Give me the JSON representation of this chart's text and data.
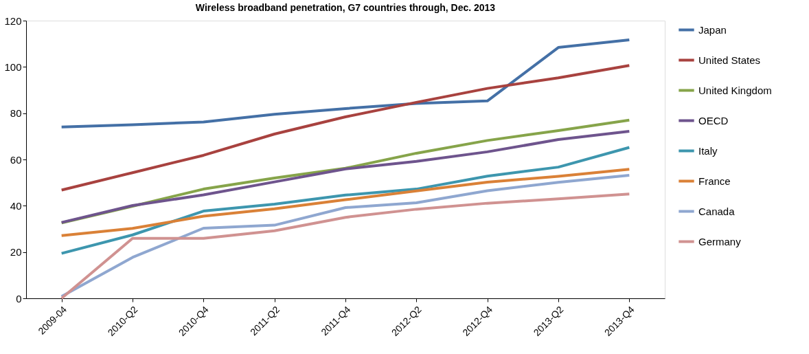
{
  "chart_data": {
    "type": "line",
    "title": "Wireless broadband penetration, G7 countries through,  Dec.  2013",
    "categories": [
      "2009-04",
      "2010-Q2",
      "2010-Q4",
      "2011-Q2",
      "2011-Q4",
      "2012-Q2",
      "2012-Q4",
      "2013-Q2",
      "2013-Q4"
    ],
    "ylim": [
      0,
      120
    ],
    "yticks": [
      0,
      20,
      40,
      60,
      80,
      100,
      120
    ],
    "grid": false,
    "legend": "right",
    "marker": "none",
    "line_style": "solid",
    "series": [
      {
        "name": "Japan",
        "color": "#4470a6",
        "values": [
          74.0,
          75.0,
          76.2,
          79.5,
          82.0,
          84.2,
          85.3,
          108.4,
          111.7
        ]
      },
      {
        "name": "United States",
        "color": "#a8423f",
        "values": [
          46.8,
          54.3,
          61.8,
          71.0,
          78.4,
          84.7,
          90.7,
          95.3,
          100.6
        ]
      },
      {
        "name": "United Kingdom",
        "color": "#86a44a",
        "values": [
          32.6,
          39.8,
          47.2,
          52.0,
          56.2,
          62.7,
          68.2,
          72.5,
          77.0
        ]
      },
      {
        "name": "OECD",
        "color": "#6e548d",
        "values": [
          32.8,
          40.1,
          44.7,
          50.3,
          55.9,
          59.2,
          63.3,
          68.6,
          72.2
        ]
      },
      {
        "name": "Italy",
        "color": "#3d96ae",
        "values": [
          19.4,
          27.4,
          37.7,
          40.7,
          44.6,
          47.2,
          52.8,
          56.7,
          65.2
        ]
      },
      {
        "name": "France",
        "color": "#da8137",
        "values": [
          27.1,
          30.2,
          35.5,
          38.7,
          42.6,
          46.4,
          50.2,
          52.7,
          55.8
        ]
      },
      {
        "name": "Canada",
        "color": "#8fa7d0",
        "values": [
          0.8,
          17.7,
          30.3,
          31.6,
          39.2,
          41.3,
          46.5,
          50.1,
          53.2
        ]
      },
      {
        "name": "Germany",
        "color": "#d09291",
        "values": [
          0.0,
          25.9,
          25.9,
          29.2,
          35.0,
          38.5,
          41.1,
          43.0,
          45.1
        ]
      }
    ]
  }
}
